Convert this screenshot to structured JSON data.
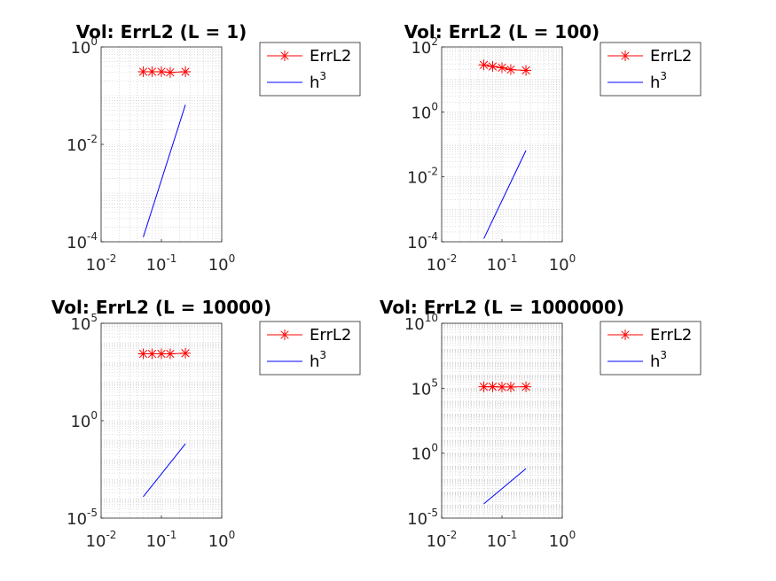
{
  "chart_data": [
    {
      "type": "line",
      "title": "Vol: ErrL2 (L = 1)",
      "xscale": "log",
      "yscale": "log",
      "xlim": [
        0.01,
        1
      ],
      "ylim": [
        0.0001,
        1
      ],
      "xticks": [
        {
          "base": "10",
          "exp": "-2"
        },
        {
          "base": "10",
          "exp": "-1"
        },
        {
          "base": "10",
          "exp": "0"
        }
      ],
      "yticks": [
        {
          "base": "10",
          "exp": "-4"
        },
        {
          "base": "10",
          "exp": "-2"
        },
        {
          "base": "10",
          "exp": "0"
        }
      ],
      "grid": "on",
      "legend_position": "outside-right",
      "series": [
        {
          "name": "ErrL2",
          "color": "#ff0000",
          "marker": "asterisk",
          "x": [
            0.05,
            0.07,
            0.1,
            0.14,
            0.25
          ],
          "y": [
            0.31,
            0.31,
            0.31,
            0.3,
            0.31
          ]
        },
        {
          "name": "h",
          "name_sup": "3",
          "color": "#0000ff",
          "marker": "none",
          "x": [
            0.05,
            0.25
          ],
          "y": [
            0.000125,
            0.065
          ]
        }
      ]
    },
    {
      "type": "line",
      "title": "Vol: ErrL2 (L = 100)",
      "xscale": "log",
      "yscale": "log",
      "xlim": [
        0.01,
        1
      ],
      "ylim": [
        0.0001,
        100
      ],
      "xticks": [
        {
          "base": "10",
          "exp": "-2"
        },
        {
          "base": "10",
          "exp": "-1"
        },
        {
          "base": "10",
          "exp": "0"
        }
      ],
      "yticks": [
        {
          "base": "10",
          "exp": "-4"
        },
        {
          "base": "10",
          "exp": "-2"
        },
        {
          "base": "10",
          "exp": "0"
        },
        {
          "base": "10",
          "exp": "2"
        }
      ],
      "grid": "on",
      "legend_position": "outside-right",
      "series": [
        {
          "name": "ErrL2",
          "color": "#ff0000",
          "marker": "asterisk",
          "x": [
            0.05,
            0.07,
            0.1,
            0.14,
            0.25
          ],
          "y": [
            28,
            25,
            23,
            20,
            19
          ]
        },
        {
          "name": "h",
          "name_sup": "3",
          "color": "#0000ff",
          "marker": "none",
          "x": [
            0.05,
            0.25
          ],
          "y": [
            0.000125,
            0.065
          ]
        }
      ]
    },
    {
      "type": "line",
      "title": "Vol: ErrL2 (L = 10000)",
      "xscale": "log",
      "yscale": "log",
      "xlim": [
        0.01,
        1
      ],
      "ylim": [
        1e-05,
        100000
      ],
      "xticks": [
        {
          "base": "10",
          "exp": "-2"
        },
        {
          "base": "10",
          "exp": "-1"
        },
        {
          "base": "10",
          "exp": "0"
        }
      ],
      "yticks": [
        {
          "base": "10",
          "exp": "-5"
        },
        {
          "base": "10",
          "exp": "0"
        },
        {
          "base": "10",
          "exp": "5"
        }
      ],
      "grid": "on",
      "legend_position": "outside-right",
      "series": [
        {
          "name": "ErrL2",
          "color": "#ff0000",
          "marker": "asterisk",
          "x": [
            0.05,
            0.07,
            0.1,
            0.14,
            0.25
          ],
          "y": [
            2700,
            2700,
            2700,
            2700,
            2900
          ]
        },
        {
          "name": "h",
          "name_sup": "3",
          "color": "#0000ff",
          "marker": "none",
          "x": [
            0.05,
            0.25
          ],
          "y": [
            0.000125,
            0.065
          ]
        }
      ]
    },
    {
      "type": "line",
      "title": "Vol: ErrL2 (L = 1000000)",
      "xscale": "log",
      "yscale": "log",
      "xlim": [
        0.01,
        1
      ],
      "ylim": [
        1e-05,
        10000000000
      ],
      "xticks": [
        {
          "base": "10",
          "exp": "-2"
        },
        {
          "base": "10",
          "exp": "-1"
        },
        {
          "base": "10",
          "exp": "0"
        }
      ],
      "yticks": [
        {
          "base": "10",
          "exp": "-5"
        },
        {
          "base": "10",
          "exp": "0"
        },
        {
          "base": "10",
          "exp": "5"
        },
        {
          "base": "10",
          "exp": "10"
        }
      ],
      "grid": "on",
      "legend_position": "outside-right",
      "series": [
        {
          "name": "ErrL2",
          "color": "#ff0000",
          "marker": "asterisk",
          "x": [
            0.05,
            0.07,
            0.1,
            0.14,
            0.25
          ],
          "y": [
            130000,
            130000,
            125000,
            125000,
            130000
          ]
        },
        {
          "name": "h",
          "name_sup": "3",
          "color": "#0000ff",
          "marker": "none",
          "x": [
            0.05,
            0.25
          ],
          "y": [
            0.000125,
            0.065
          ]
        }
      ]
    }
  ]
}
